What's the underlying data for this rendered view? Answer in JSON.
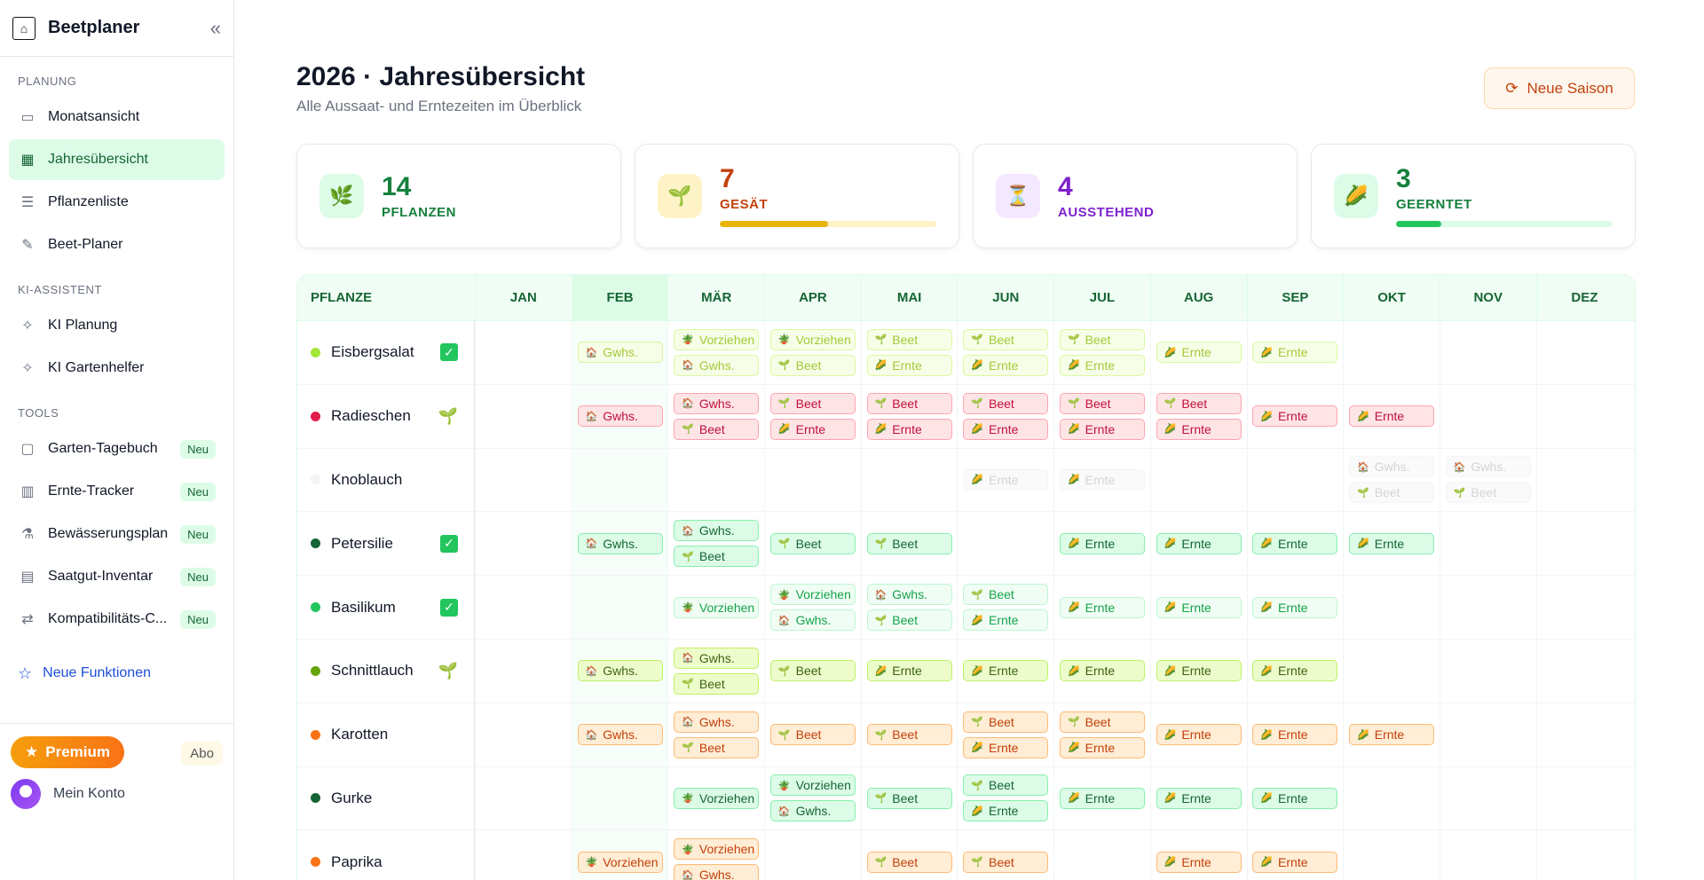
{
  "app": {
    "title": "Beetplaner",
    "logo_icon": "house-plant-logo-icon"
  },
  "sidebar": {
    "sections": [
      {
        "label": "PLANUNG",
        "items": [
          {
            "label": "Monatsansicht",
            "icon": "calendar-icon"
          },
          {
            "label": "Jahresübersicht",
            "icon": "calendar-grid-icon",
            "active": true
          },
          {
            "label": "Pflanzenliste",
            "icon": "list-icon"
          },
          {
            "label": "Beet-Planer",
            "icon": "brush-icon"
          }
        ]
      },
      {
        "label": "KI-ASSISTENT",
        "items": [
          {
            "label": "KI Planung",
            "icon": "sparkles-icon"
          },
          {
            "label": "KI Gartenhelfer",
            "icon": "sparkles-icon"
          }
        ]
      },
      {
        "label": "TOOLS",
        "items": [
          {
            "label": "Garten-Tagebuch",
            "icon": "book-icon",
            "badge": "Neu"
          },
          {
            "label": "Ernte-Tracker",
            "icon": "bar-chart-icon",
            "badge": "Neu"
          },
          {
            "label": "Bewässerungsplan",
            "icon": "flask-icon",
            "badge": "Neu"
          },
          {
            "label": "Saatgut-Inventar",
            "icon": "archive-icon",
            "badge": "Neu"
          },
          {
            "label": "Kompatibilitäts-C...",
            "icon": "arrows-icon",
            "badge": "Neu"
          }
        ]
      }
    ],
    "new_features": "Neue Funktionen",
    "premium": "Premium",
    "abo": "Abo",
    "account": "Mein Konto"
  },
  "header": {
    "title": "2026 · Jahresübersicht",
    "subtitle": "Alle Aussaat- und Erntezeiten im Überblick",
    "new_season": "Neue Saison"
  },
  "stats": [
    {
      "value": "14",
      "label": "PFLANZEN",
      "icon": "🌿",
      "color": "#15803d",
      "bg": "#dcfce7",
      "progress": null
    },
    {
      "value": "7",
      "label": "GESÄT",
      "icon": "🌱",
      "color": "#c2410c",
      "bg": "#fef3c7",
      "progress": 0.5,
      "bar": "#eab308",
      "track": "#fef3c7"
    },
    {
      "value": "4",
      "label": "AUSSTEHEND",
      "icon": "⏳",
      "color": "#7e22ce",
      "bg": "#f3e8ff",
      "progress": null
    },
    {
      "value": "3",
      "label": "GEERNTET",
      "icon": "🌽",
      "color": "#15803d",
      "bg": "#dcfce7",
      "progress": 0.21,
      "bar": "#22c55e",
      "track": "#dcfce7"
    }
  ],
  "grid": {
    "plant_header": "PFLANZE",
    "months": [
      "JAN",
      "FEB",
      "MÄR",
      "APR",
      "MAI",
      "JUN",
      "JUL",
      "AUG",
      "SEP",
      "OKT",
      "NOV",
      "DEZ"
    ],
    "current_month": 1,
    "chip_icons": {
      "Gwhs.": "🏠",
      "Beet": "🌱",
      "Ernte": "🌽",
      "Vorziehen": "🪴"
    },
    "plants": [
      {
        "name": "Eisbergsalat",
        "dot": "#a3e635",
        "status": "check",
        "theme": {
          "bg": "#f7fee7",
          "bd": "#d9f99d",
          "fg": "#a3c93a"
        },
        "months": [
          [],
          [
            "Gwhs."
          ],
          [
            "Vorziehen",
            "Gwhs."
          ],
          [
            "Vorziehen",
            "Beet"
          ],
          [
            "Beet",
            "Ernte"
          ],
          [
            "Beet",
            "Ernte"
          ],
          [
            "Beet",
            "Ernte"
          ],
          [
            "Ernte"
          ],
          [
            "Ernte"
          ],
          [],
          [],
          []
        ]
      },
      {
        "name": "Radieschen",
        "dot": "#e11d48",
        "status": "sprout",
        "theme": {
          "bg": "#ffe4e6",
          "bd": "#fda4af",
          "fg": "#be123c"
        },
        "months": [
          [],
          [
            "Gwhs."
          ],
          [
            "Gwhs.",
            "Beet"
          ],
          [
            "Beet",
            "Ernte"
          ],
          [
            "Beet",
            "Ernte"
          ],
          [
            "Beet",
            "Ernte"
          ],
          [
            "Beet",
            "Ernte"
          ],
          [
            "Beet",
            "Ernte"
          ],
          [
            "Ernte"
          ],
          [
            "Ernte"
          ],
          [],
          []
        ]
      },
      {
        "name": "Knoblauch",
        "dot": "#f3f4f6",
        "status": "",
        "theme": {
          "bg": "#fafafa",
          "bd": "#f5f5f5",
          "fg": "#d4d4d4"
        },
        "months": [
          [],
          [],
          [],
          [],
          [],
          [
            "Ernte"
          ],
          [
            "Ernte"
          ],
          [],
          [],
          [
            "Gwhs.",
            "Beet"
          ],
          [
            "Gwhs.",
            "Beet"
          ],
          []
        ]
      },
      {
        "name": "Petersilie",
        "dot": "#166534",
        "status": "check",
        "theme": {
          "bg": "#dcfce7",
          "bd": "#86efac",
          "fg": "#166534"
        },
        "months": [
          [],
          [
            "Gwhs."
          ],
          [
            "Gwhs.",
            "Beet"
          ],
          [
            "Beet"
          ],
          [
            "Beet"
          ],
          [],
          [
            "Ernte"
          ],
          [
            "Ernte"
          ],
          [
            "Ernte"
          ],
          [
            "Ernte"
          ],
          [],
          []
        ]
      },
      {
        "name": "Basilikum",
        "dot": "#22c55e",
        "status": "check",
        "theme": {
          "bg": "#f0fdf4",
          "bd": "#bbf7d0",
          "fg": "#16a34a"
        },
        "months": [
          [],
          [],
          [
            "Vorziehen"
          ],
          [
            "Vorziehen",
            "Gwhs."
          ],
          [
            "Gwhs.",
            "Beet"
          ],
          [
            "Beet",
            "Ernte"
          ],
          [
            "Ernte"
          ],
          [
            "Ernte"
          ],
          [
            "Ernte"
          ],
          [],
          [],
          []
        ]
      },
      {
        "name": "Schnittlauch",
        "dot": "#65a30d",
        "status": "sprout",
        "theme": {
          "bg": "#ecfccb",
          "bd": "#bef264",
          "fg": "#3f6212"
        },
        "months": [
          [],
          [
            "Gwhs."
          ],
          [
            "Gwhs.",
            "Beet"
          ],
          [
            "Beet"
          ],
          [
            "Ernte"
          ],
          [
            "Ernte"
          ],
          [
            "Ernte"
          ],
          [
            "Ernte"
          ],
          [
            "Ernte"
          ],
          [],
          [],
          []
        ]
      },
      {
        "name": "Karotten",
        "dot": "#f97316",
        "status": "",
        "theme": {
          "bg": "#ffedd5",
          "bd": "#fdba74",
          "fg": "#c2410c"
        },
        "months": [
          [],
          [
            "Gwhs."
          ],
          [
            "Gwhs.",
            "Beet"
          ],
          [
            "Beet"
          ],
          [
            "Beet"
          ],
          [
            "Beet",
            "Ernte"
          ],
          [
            "Beet",
            "Ernte"
          ],
          [
            "Ernte"
          ],
          [
            "Ernte"
          ],
          [
            "Ernte"
          ],
          [],
          []
        ]
      },
      {
        "name": "Gurke",
        "dot": "#166534",
        "status": "",
        "theme": {
          "bg": "#dcfce7",
          "bd": "#86efac",
          "fg": "#166534"
        },
        "months": [
          [],
          [],
          [
            "Vorziehen"
          ],
          [
            "Vorziehen",
            "Gwhs."
          ],
          [
            "Beet"
          ],
          [
            "Beet",
            "Ernte"
          ],
          [
            "Ernte"
          ],
          [
            "Ernte"
          ],
          [
            "Ernte"
          ],
          [],
          [],
          []
        ]
      },
      {
        "name": "Paprika",
        "dot": "#f97316",
        "status": "",
        "theme": {
          "bg": "#ffedd5",
          "bd": "#fdba74",
          "fg": "#c2410c"
        },
        "months": [
          [],
          [
            "Vorziehen"
          ],
          [
            "Vorziehen",
            "Gwhs."
          ],
          [],
          [
            "Beet"
          ],
          [
            "Beet"
          ],
          [],
          [
            "Ernte"
          ],
          [
            "Ernte"
          ],
          [],
          [],
          []
        ]
      }
    ]
  }
}
